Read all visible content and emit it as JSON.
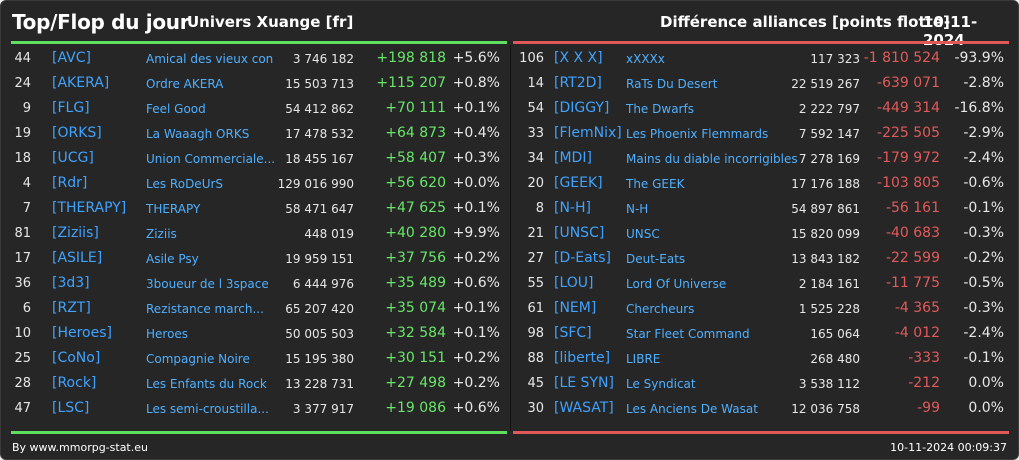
{
  "header": {
    "title": "Top/Flop du jour",
    "universe": "Univers Xuange [fr]",
    "subtitle": "Différence alliances [points flotte]",
    "date": "10-11-2024"
  },
  "top": [
    {
      "rank": "44",
      "tag": "[AVC]",
      "name": "Amical des vieux con",
      "points": "3 746 182",
      "delta": "+198 818",
      "pct": "+5.6%"
    },
    {
      "rank": "24",
      "tag": "[AKERA]",
      "name": "Ordre AKERA",
      "points": "15 503 713",
      "delta": "+115 207",
      "pct": "+0.8%"
    },
    {
      "rank": "9",
      "tag": "[FLG]",
      "name": "Feel Good",
      "points": "54 412 862",
      "delta": "+70 111",
      "pct": "+0.1%"
    },
    {
      "rank": "19",
      "tag": "[ORKS]",
      "name": "La Waaagh ORKS",
      "points": "17 478 532",
      "delta": "+64 873",
      "pct": "+0.4%"
    },
    {
      "rank": "18",
      "tag": "[UCG]",
      "name": "Union Commerciale...",
      "points": "18 455 167",
      "delta": "+58 407",
      "pct": "+0.3%"
    },
    {
      "rank": "4",
      "tag": "[Rdr]",
      "name": "Les RoDeUrS",
      "points": "129 016 990",
      "delta": "+56 620",
      "pct": "+0.0%"
    },
    {
      "rank": "7",
      "tag": "[THERAPY]",
      "name": "THERAPY",
      "points": "58 471 647",
      "delta": "+47 625",
      "pct": "+0.1%"
    },
    {
      "rank": "81",
      "tag": "[Ziziis]",
      "name": "Ziziis",
      "points": "448 019",
      "delta": "+40 280",
      "pct": "+9.9%"
    },
    {
      "rank": "17",
      "tag": "[ASILE]",
      "name": "Asile Psy",
      "points": "19 959 151",
      "delta": "+37 756",
      "pct": "+0.2%"
    },
    {
      "rank": "36",
      "tag": "[3d3]",
      "name": "3boueur de l 3space",
      "points": "6 444 976",
      "delta": "+35 489",
      "pct": "+0.6%"
    },
    {
      "rank": "6",
      "tag": "[RZT]",
      "name": "Rezistance march...",
      "points": "65 207 420",
      "delta": "+35 074",
      "pct": "+0.1%"
    },
    {
      "rank": "10",
      "tag": "[Heroes]",
      "name": "Heroes",
      "points": "50 005 503",
      "delta": "+32 584",
      "pct": "+0.1%"
    },
    {
      "rank": "25",
      "tag": "[CoNo]",
      "name": "Compagnie Noire",
      "points": "15 195 380",
      "delta": "+30 151",
      "pct": "+0.2%"
    },
    {
      "rank": "28",
      "tag": "[Rock]",
      "name": "Les Enfants du Rock",
      "points": "13 228 731",
      "delta": "+27 498",
      "pct": "+0.2%"
    },
    {
      "rank": "47",
      "tag": "[LSC]",
      "name": "Les semi-croustilla...",
      "points": "3 377 917",
      "delta": "+19 086",
      "pct": "+0.6%"
    }
  ],
  "flop": [
    {
      "rank": "106",
      "tag": "[X X X]",
      "name": "xXXXx",
      "points": "117 323",
      "delta": "-1 810 524",
      "pct": "-93.9%"
    },
    {
      "rank": "14",
      "tag": "[RT2D]",
      "name": "RaTs Du Desert",
      "points": "22 519 267",
      "delta": "-639 071",
      "pct": "-2.8%"
    },
    {
      "rank": "54",
      "tag": "[DIGGY]",
      "name": "The Dwarfs",
      "points": "2 222 797",
      "delta": "-449 314",
      "pct": "-16.8%"
    },
    {
      "rank": "33",
      "tag": "[FlemNix]",
      "name": "Les Phoenix Flemmards",
      "points": "7 592 147",
      "delta": "-225 505",
      "pct": "-2.9%"
    },
    {
      "rank": "34",
      "tag": "[MDI]",
      "name": "Mains du diable incorrigibles",
      "points": "7 278 169",
      "delta": "-179 972",
      "pct": "-2.4%"
    },
    {
      "rank": "20",
      "tag": "[GEEK]",
      "name": "The GEEK",
      "points": "17 176 188",
      "delta": "-103 805",
      "pct": "-0.6%"
    },
    {
      "rank": "8",
      "tag": "[N-H]",
      "name": "N-H",
      "points": "54 897 861",
      "delta": "-56 161",
      "pct": "-0.1%"
    },
    {
      "rank": "21",
      "tag": "[UNSC]",
      "name": "UNSC",
      "points": "15 820 099",
      "delta": "-40 683",
      "pct": "-0.3%"
    },
    {
      "rank": "27",
      "tag": "[D-Eats]",
      "name": "Deut-Eats",
      "points": "13 843 182",
      "delta": "-22 599",
      "pct": "-0.2%"
    },
    {
      "rank": "55",
      "tag": "[LOU]",
      "name": "Lord Of Universe",
      "points": "2 184 161",
      "delta": "-11 775",
      "pct": "-0.5%"
    },
    {
      "rank": "61",
      "tag": "[NEM]",
      "name": "Chercheurs",
      "points": "1 525 228",
      "delta": "-4 365",
      "pct": "-0.3%"
    },
    {
      "rank": "98",
      "tag": "[SFC]",
      "name": "Star Fleet Command",
      "points": "165 064",
      "delta": "-4 012",
      "pct": "-2.4%"
    },
    {
      "rank": "88",
      "tag": "[liberte]",
      "name": "LIBRE",
      "points": "268 480",
      "delta": "-333",
      "pct": "-0.1%"
    },
    {
      "rank": "45",
      "tag": "[LE SYN]",
      "name": "Le Syndicat",
      "points": "3 538 112",
      "delta": "-212",
      "pct": "0.0%"
    },
    {
      "rank": "30",
      "tag": "[WASAT]",
      "name": "Les Anciens De Wasat",
      "points": "12 036 758",
      "delta": "-99",
      "pct": "0.0%"
    }
  ],
  "footer": {
    "source": "By www.mmorpg-stat.eu",
    "timestamp": "10-11-2024 00:09:37"
  },
  "colors": {
    "background": "#262626",
    "positive": "#68e668",
    "negative": "#e25a5a",
    "tag": "#3fa3ff",
    "top_bar": "#5de05d",
    "flop_bar": "#e05858"
  }
}
